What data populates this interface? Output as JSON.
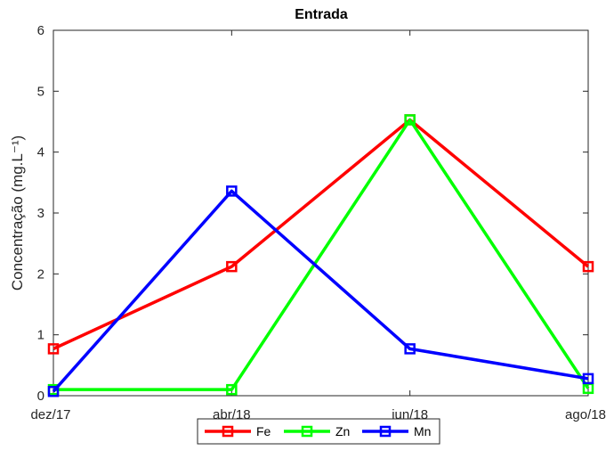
{
  "chart_data": {
    "type": "line",
    "title": "Entrada",
    "xlabel": "",
    "ylabel": "Concentração (mg.L⁻¹)",
    "categories": [
      "dez/17",
      "abr/18",
      "jun/18",
      "ago/18"
    ],
    "ylim": [
      0,
      6
    ],
    "yticks": [
      0,
      1,
      2,
      3,
      4,
      5,
      6
    ],
    "grid": false,
    "legend_position": "bottom",
    "series": [
      {
        "name": "Fe",
        "color": "#ff0000",
        "values": [
          0.77,
          2.12,
          4.53,
          2.12
        ]
      },
      {
        "name": "Zn",
        "color": "#00ff00",
        "values": [
          0.1,
          0.1,
          4.53,
          0.12
        ]
      },
      {
        "name": "Mn",
        "color": "#0000ff",
        "values": [
          0.07,
          3.36,
          0.77,
          0.28
        ]
      }
    ]
  }
}
